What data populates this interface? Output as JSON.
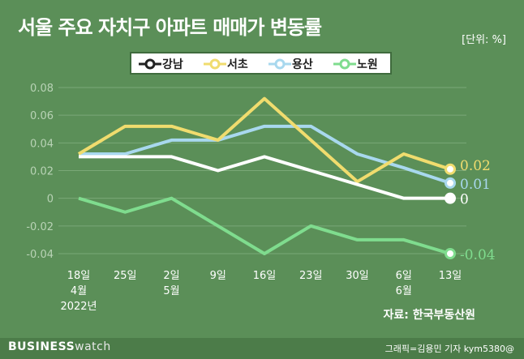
{
  "title": "서울 주요 자치구 아파트 매매가 변동률",
  "unit_label": "[단위: %]",
  "source": "자료: 한국부동산원",
  "footer": {
    "brand_bold": "BUSINESS",
    "brand_light": "watch",
    "credit": "그래픽=김용민 기자 kym5380@"
  },
  "colors": {
    "background": "#5b8f58",
    "axis_text": "#b9d3b6",
    "gridline": "#7aa877"
  },
  "chart_data": {
    "type": "line",
    "categories": [
      "18일",
      "25일",
      "2일",
      "9일",
      "16일",
      "23일",
      "30일",
      "6일",
      "13일"
    ],
    "category_sub": [
      [
        "4월",
        "2022년"
      ],
      [],
      [
        "5월"
      ],
      [],
      [],
      [],
      [],
      [
        "6월"
      ],
      []
    ],
    "y_ticks": [
      "0.08",
      "0.06",
      "0.04",
      "0.02",
      "0",
      "-0.02",
      "-0.04"
    ],
    "ylim": [
      -0.045,
      0.085
    ],
    "series": [
      {
        "name": "강남",
        "color": "#ffffff",
        "values": [
          0.03,
          0.03,
          0.03,
          0.02,
          0.03,
          0.02,
          0.01,
          0.0,
          0.0
        ],
        "end_label": "0"
      },
      {
        "name": "서초",
        "color": "#f0dc6e",
        "values": [
          0.032,
          0.052,
          0.052,
          0.042,
          0.072,
          0.042,
          0.012,
          0.032,
          0.021
        ],
        "end_label": "0.02"
      },
      {
        "name": "용산",
        "color": "#a8d8ee",
        "values": [
          0.032,
          0.032,
          0.042,
          0.042,
          0.052,
          0.052,
          0.032,
          0.022,
          0.011
        ],
        "end_label": "0.01"
      },
      {
        "name": "노원",
        "color": "#7fdc8e",
        "values": [
          0.0,
          -0.01,
          0.0,
          -0.02,
          -0.04,
          -0.02,
          -0.03,
          -0.03,
          -0.04
        ],
        "end_label": "-0.04"
      }
    ]
  }
}
